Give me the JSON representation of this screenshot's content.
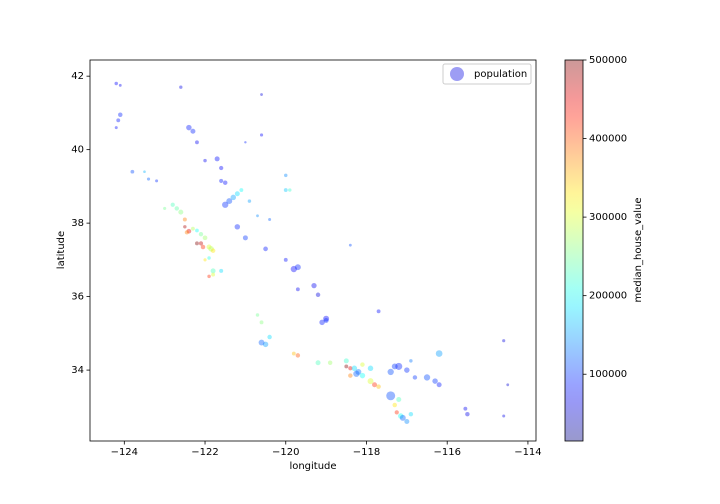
{
  "chart_data": {
    "type": "scatter",
    "xlabel": "longitude",
    "ylabel": "latitude",
    "xlim": [
      -124.85,
      -113.8
    ],
    "ylim": [
      32.07,
      42.44
    ],
    "xticks": [
      {
        "value": -124,
        "label": "−124"
      },
      {
        "value": -122,
        "label": "−122"
      },
      {
        "value": -120,
        "label": "−120"
      },
      {
        "value": -118,
        "label": "−118"
      },
      {
        "value": -116,
        "label": "−116"
      },
      {
        "value": -114,
        "label": "−114"
      }
    ],
    "yticks": [
      34,
      36,
      38,
      40,
      42
    ],
    "size_label": "population",
    "legend": "upper right",
    "legend_marker_color": "#7373f0",
    "colorbar_label": "median_house_value",
    "colormap": "jet",
    "alpha": 0.4,
    "clim": [
      15000,
      500000
    ],
    "cticks": [
      100000,
      200000,
      300000,
      400000,
      500000
    ],
    "x": [
      -124.2,
      -124.1,
      -124.15,
      -124.1,
      -124.2,
      -123.8,
      -123.4,
      -123.2,
      -122.4,
      -122.3,
      -122.2,
      -122.6,
      -121.7,
      -121.6,
      -122.0,
      -121.5,
      -121.6,
      -120.6,
      -120.6,
      -121.0,
      -121.4,
      -121.3,
      -121.2,
      -121.5,
      -121.1,
      -120.9,
      -120.4,
      -120.0,
      -119.9,
      -122.6,
      -122.7,
      -122.8,
      -122.5,
      -122.5,
      -122.4,
      -122.45,
      -122.3,
      -122.2,
      -122.1,
      -122.0,
      -122.1,
      -122.2,
      -122.05,
      -121.9,
      -121.85,
      -121.8,
      -121.9,
      -121.8,
      -121.8,
      -121.9,
      -121.6,
      -122.0,
      -121.2,
      -121.0,
      -120.5,
      -120.0,
      -119.8,
      -119.7,
      -119.3,
      -119.2,
      -119.0,
      -119.1,
      -119.0,
      -119.7,
      -120.6,
      -120.7,
      -120.4,
      -120.5,
      -119.7,
      -119.8,
      -119.2,
      -118.9,
      -118.5,
      -118.4,
      -118.3,
      -118.2,
      -118.25,
      -118.1,
      -118.4,
      -118.5,
      -118.1,
      -117.9,
      -117.9,
      -117.8,
      -117.7,
      -117.4,
      -117.3,
      -117.2,
      -117.0,
      -116.8,
      -116.5,
      -116.3,
      -116.2,
      -117.2,
      -117.3,
      -117.25,
      -117.15,
      -117.1,
      -117.0,
      -116.9,
      -117.4,
      -116.2,
      -115.5,
      -115.55,
      -114.6,
      -114.5,
      -114.6,
      -118.4,
      -117.7,
      -116.9,
      -120.6,
      -123.0,
      -123.5,
      -120.0,
      -120.7
    ],
    "y": [
      41.8,
      41.75,
      40.8,
      40.95,
      40.6,
      39.4,
      39.2,
      39.15,
      40.6,
      40.5,
      40.2,
      41.7,
      39.75,
      39.5,
      39.7,
      39.1,
      39.15,
      41.5,
      40.4,
      40.2,
      38.6,
      38.7,
      38.8,
      38.5,
      38.9,
      38.6,
      38.1,
      38.9,
      38.9,
      38.3,
      38.4,
      38.5,
      38.1,
      37.9,
      37.78,
      37.75,
      37.85,
      37.8,
      37.7,
      37.6,
      37.45,
      37.45,
      37.35,
      37.35,
      37.3,
      37.25,
      37.05,
      36.7,
      36.6,
      36.55,
      36.7,
      37.0,
      37.9,
      37.6,
      37.3,
      37.0,
      36.75,
      36.8,
      36.3,
      36.05,
      35.4,
      35.3,
      35.35,
      36.2,
      35.3,
      35.5,
      34.9,
      34.7,
      34.4,
      34.45,
      34.2,
      34.2,
      34.1,
      34.05,
      34.05,
      33.95,
      33.9,
      33.85,
      33.85,
      34.25,
      34.15,
      34.05,
      33.7,
      33.6,
      33.55,
      33.95,
      34.1,
      34.1,
      34.0,
      33.8,
      33.8,
      33.7,
      33.6,
      33.2,
      33.05,
      32.85,
      32.75,
      32.7,
      32.6,
      32.8,
      33.3,
      34.45,
      32.8,
      32.95,
      34.8,
      33.6,
      32.75,
      37.4,
      35.6,
      34.25,
      34.75,
      38.4,
      39.4,
      39.3,
      38.2
    ],
    "population": [
      1200,
      800,
      1500,
      2000,
      900,
      1400,
      1000,
      900,
      3000,
      2500,
      1500,
      1100,
      2500,
      1800,
      1200,
      2000,
      1700,
      800,
      1000,
      600,
      3500,
      3000,
      2500,
      4000,
      1500,
      1200,
      900,
      1500,
      1200,
      2500,
      2000,
      1800,
      1600,
      1200,
      2200,
      1800,
      1500,
      1400,
      1900,
      2200,
      1800,
      1500,
      2000,
      2500,
      3000,
      2100,
      1200,
      2500,
      1500,
      1200,
      1600,
      1000,
      3000,
      2500,
      2200,
      1500,
      4000,
      3500,
      2800,
      2000,
      3500,
      3000,
      2500,
      1500,
      1500,
      1200,
      2000,
      3000,
      2000,
      1500,
      2500,
      2000,
      1500,
      1800,
      3000,
      3500,
      4000,
      3000,
      2000,
      2500,
      2000,
      3000,
      3500,
      2500,
      2000,
      4000,
      3500,
      5000,
      3000,
      2000,
      4000,
      3000,
      2500,
      2500,
      2000,
      1800,
      3000,
      3500,
      2500,
      2000,
      8000,
      4500,
      2000,
      1500,
      1000,
      800,
      900,
      800,
      1500,
      1200,
      3500,
      1000,
      700,
      1200,
      800
    ],
    "median_house_value": [
      75000,
      70000,
      85000,
      90000,
      80000,
      110000,
      120000,
      95000,
      85000,
      90000,
      70000,
      65000,
      80000,
      75000,
      70000,
      80000,
      85000,
      60000,
      75000,
      90000,
      110000,
      150000,
      180000,
      95000,
      200000,
      150000,
      120000,
      170000,
      220000,
      260000,
      240000,
      230000,
      380000,
      480000,
      450000,
      380000,
      280000,
      200000,
      250000,
      270000,
      470000,
      500000,
      420000,
      300000,
      280000,
      330000,
      210000,
      230000,
      300000,
      420000,
      180000,
      330000,
      90000,
      100000,
      85000,
      80000,
      75000,
      90000,
      70000,
      60000,
      75000,
      85000,
      95000,
      70000,
      260000,
      250000,
      180000,
      150000,
      400000,
      350000,
      230000,
      270000,
      500000,
      450000,
      180000,
      130000,
      120000,
      200000,
      380000,
      220000,
      300000,
      180000,
      300000,
      420000,
      350000,
      110000,
      100000,
      90000,
      95000,
      100000,
      110000,
      100000,
      85000,
      230000,
      330000,
      420000,
      200000,
      120000,
      140000,
      180000,
      110000,
      150000,
      65000,
      70000,
      60000,
      55000,
      65000,
      110000,
      80000,
      130000,
      120000,
      250000,
      160000,
      140000,
      140000
    ]
  }
}
